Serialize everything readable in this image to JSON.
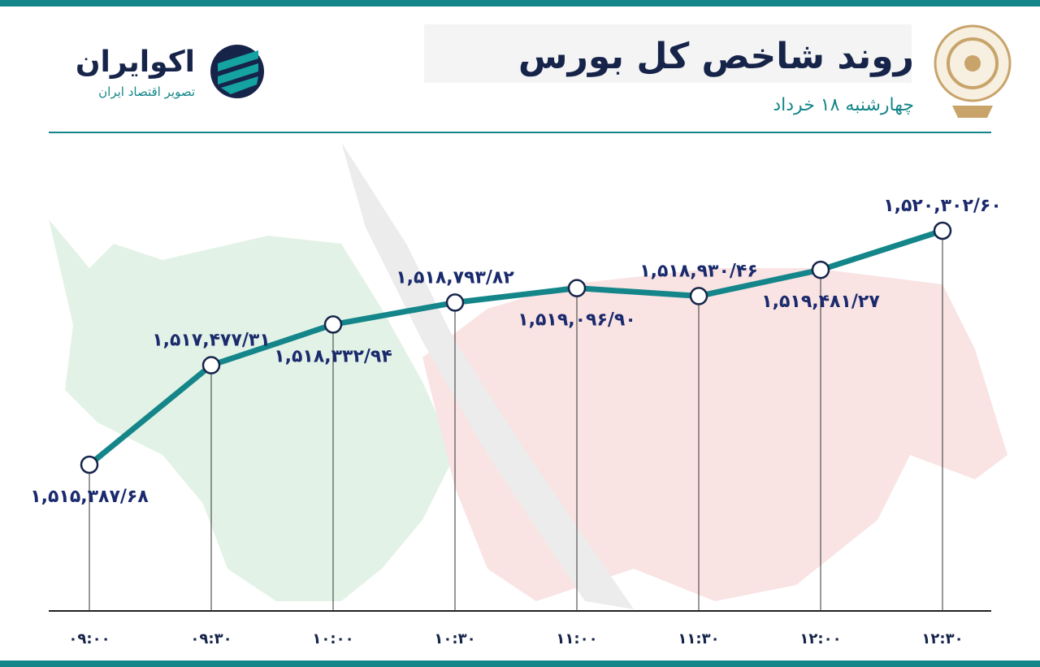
{
  "brand": {
    "name": "اکوایران",
    "tagline": "تصویر اقتصاد ایران"
  },
  "chart_data": {
    "type": "line",
    "title": "روند شاخص کل بورس",
    "subtitle": "چهارشنبه ۱۸ خرداد",
    "categories": [
      "۰۹:۰۰",
      "۰۹:۳۰",
      "۱۰:۰۰",
      "۱۰:۳۰",
      "۱۱:۰۰",
      "۱۱:۳۰",
      "۱۲:۰۰",
      "۱۲:۳۰"
    ],
    "values": [
      1515387.68,
      1517477.31,
      1518332.94,
      1518793.82,
      1519096.9,
      1518930.46,
      1519481.27,
      1520302.6
    ],
    "value_labels": [
      "۱,۵۱۵,۳۸۷/۶۸",
      "۱,۵۱۷,۴۷۷/۳۱",
      "۱,۵۱۸,۳۳۲/۹۴",
      "۱,۵۱۸,۷۹۳/۸۲",
      "۱,۵۱۹,۰۹۶/۹۰",
      "۱,۵۱۸,۹۳۰/۴۶",
      "۱,۵۱۹,۴۸۱/۲۷",
      "۱,۵۲۰,۳۰۲/۶۰"
    ],
    "color": "#14868a"
  }
}
